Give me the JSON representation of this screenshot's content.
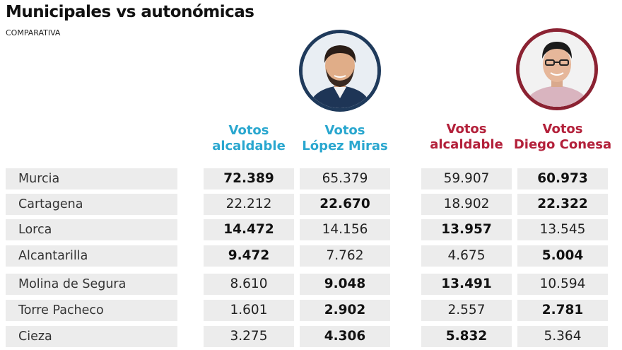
{
  "title": "Municipales vs autonómicas",
  "subtitle": "COMPARATIVA",
  "colors": {
    "pp_blue": "#2aa7cf",
    "pp_ring": "#1f3a5b",
    "psoe_red": "#b3203a",
    "psoe_ring": "#8b2232",
    "cell_bg": "#ececec"
  },
  "portraits": [
    {
      "icon": "person-portrait-icon",
      "ring": "blue"
    },
    {
      "icon": "person-portrait-icon",
      "ring": "red"
    }
  ],
  "chart_data": {
    "type": "table",
    "title": "Municipales vs autonómicas",
    "subtitle": "COMPARATIVA",
    "columns": [
      {
        "line1": "Votos",
        "line2": "alcaldable",
        "color": "blue"
      },
      {
        "line1": "Votos",
        "line2": "López Miras",
        "color": "blue"
      },
      {
        "line1": "Votos",
        "line2": "alcaldable",
        "color": "red"
      },
      {
        "line1": "Votos",
        "line2": "Diego Conesa",
        "color": "red"
      }
    ],
    "rows": [
      {
        "label": "Murcia",
        "values": [
          "72.389",
          "65.379",
          "59.907",
          "60.973"
        ],
        "bold": [
          true,
          false,
          false,
          true
        ]
      },
      {
        "label": "Cartagena",
        "values": [
          "22.212",
          "22.670",
          "18.902",
          "22.322"
        ],
        "bold": [
          false,
          true,
          false,
          true
        ]
      },
      {
        "label": "Lorca",
        "values": [
          "14.472",
          "14.156",
          "13.957",
          "13.545"
        ],
        "bold": [
          true,
          false,
          true,
          false
        ]
      },
      {
        "label": "Alcantarilla",
        "values": [
          "9.472",
          "7.762",
          "4.675",
          "5.004"
        ],
        "bold": [
          true,
          false,
          false,
          true
        ]
      },
      {
        "label": "Molina de Segura",
        "values": [
          "8.610",
          "9.048",
          "13.491",
          "10.594"
        ],
        "bold": [
          false,
          true,
          true,
          false
        ]
      },
      {
        "label": "Torre Pacheco",
        "values": [
          "1.601",
          "2.902",
          "2.557",
          "2.781"
        ],
        "bold": [
          false,
          true,
          false,
          true
        ]
      },
      {
        "label": "Cieza",
        "values": [
          "3.275",
          "4.306",
          "5.832",
          "5.364"
        ],
        "bold": [
          false,
          true,
          true,
          false
        ]
      }
    ]
  }
}
